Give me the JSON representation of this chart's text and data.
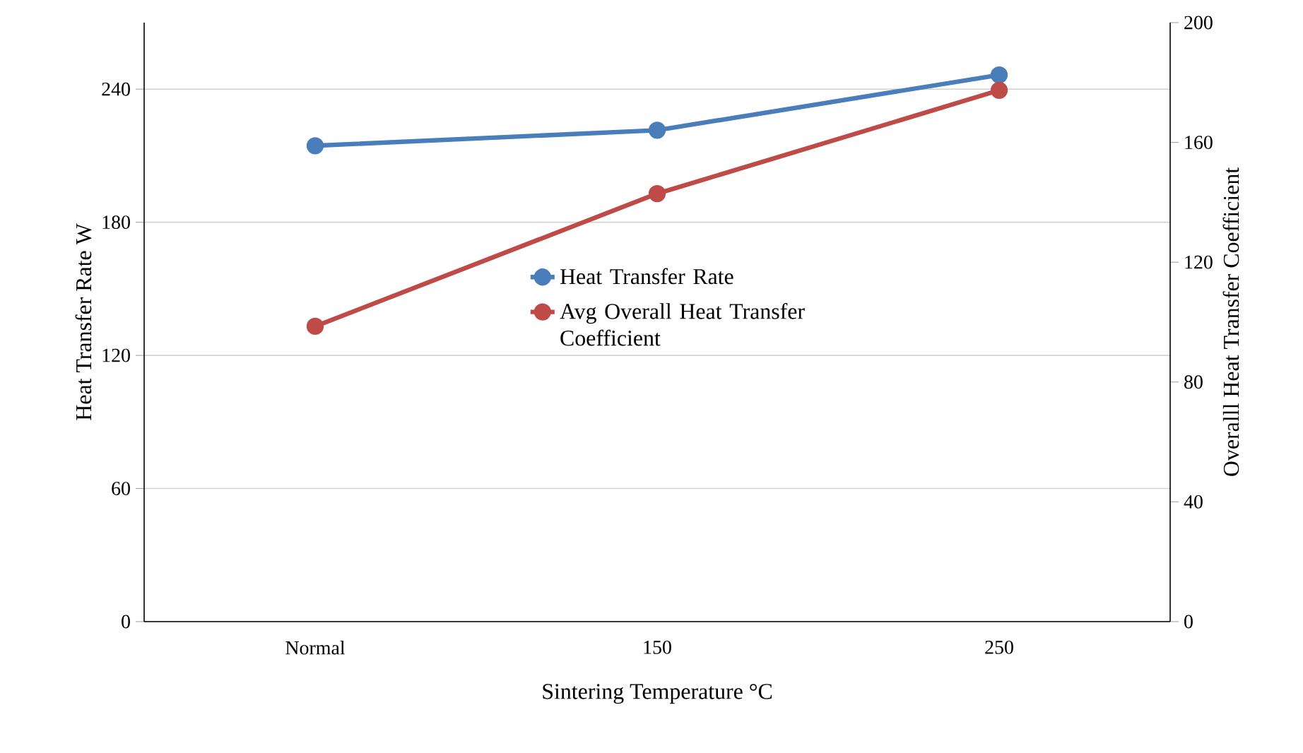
{
  "chart_data": {
    "type": "line",
    "xlabel": "Sintering Temperature °C",
    "ylabel": "Heat Transfer Rate W",
    "y2label": "Overalll Heat Transfer Coefficient",
    "categories": [
      "Normal",
      "150",
      "250"
    ],
    "series": [
      {
        "name": "Heat Transfer Rate",
        "color": "#4a7ebb",
        "values": [
          214.5,
          221.5,
          246.4
        ]
      },
      {
        "name": "Avg Overall Heat Transfer Coefficient",
        "color": "#be4b48",
        "values": [
          98.6,
          142.9,
          177.4
        ],
        "axis": "y2"
      }
    ],
    "ylim": [
      0,
      270
    ],
    "yticks": [
      0,
      60,
      120,
      180,
      240
    ],
    "y2lim": [
      0,
      200
    ],
    "y2ticks": [
      0,
      40,
      80,
      120,
      160,
      200
    ],
    "grid": "y",
    "legend": "center",
    "marker": "circle",
    "line_style": "solid"
  }
}
